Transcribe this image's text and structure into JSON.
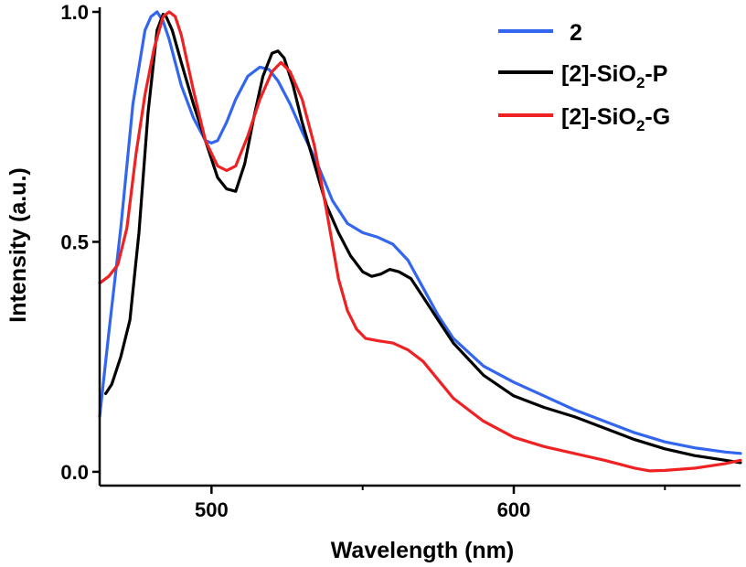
{
  "chart_data": {
    "type": "line",
    "title": "",
    "xlabel": "Wavelength (nm)",
    "ylabel": "Intensity (a.u.)",
    "xlim": [
      463,
      675
    ],
    "ylim": [
      -0.03,
      1.01
    ],
    "x_ticks_major": [
      500,
      600
    ],
    "x_ticks_minor": [
      550,
      650
    ],
    "y_ticks_major": [
      0.0,
      0.5,
      1.0
    ],
    "x_tick_labels": [
      "500",
      "600"
    ],
    "y_tick_labels": [
      "0.0",
      "0.5",
      "1.0"
    ],
    "legend_position": "top-right",
    "series": [
      {
        "name": "2",
        "legend_parts": [
          "2"
        ],
        "color": "#3366ee",
        "x": [
          463,
          466,
          470,
          474,
          478,
          480,
          482,
          484,
          486,
          488,
          490,
          494,
          498,
          500,
          502,
          505,
          508,
          512,
          516,
          519,
          522,
          526,
          530,
          535,
          540,
          545,
          550,
          555,
          560,
          565,
          570,
          575,
          580,
          590,
          600,
          610,
          620,
          630,
          640,
          650,
          660,
          670,
          675
        ],
        "y": [
          0.12,
          0.3,
          0.53,
          0.8,
          0.96,
          0.99,
          1.0,
          0.98,
          0.94,
          0.89,
          0.84,
          0.77,
          0.72,
          0.715,
          0.72,
          0.76,
          0.81,
          0.86,
          0.88,
          0.875,
          0.85,
          0.8,
          0.74,
          0.67,
          0.59,
          0.54,
          0.52,
          0.51,
          0.495,
          0.46,
          0.4,
          0.34,
          0.29,
          0.23,
          0.195,
          0.165,
          0.135,
          0.11,
          0.085,
          0.065,
          0.052,
          0.043,
          0.04
        ]
      },
      {
        "name": "[2]-SiO2-P",
        "legend_parts": [
          "[2]-SiO",
          "2",
          "-P"
        ],
        "color": "#000000",
        "x": [
          465,
          467,
          470,
          473,
          476,
          479,
          482,
          484,
          485,
          487,
          490,
          494,
          498,
          502,
          505,
          508,
          511,
          514,
          517,
          520,
          522,
          524,
          527,
          530,
          534,
          538,
          542,
          546,
          550,
          553,
          556,
          559,
          562,
          566,
          570,
          575,
          580,
          590,
          600,
          610,
          620,
          630,
          640,
          650,
          660,
          670,
          675
        ],
        "y": [
          0.17,
          0.19,
          0.25,
          0.33,
          0.52,
          0.78,
          0.96,
          0.995,
          0.99,
          0.96,
          0.89,
          0.8,
          0.72,
          0.64,
          0.615,
          0.61,
          0.67,
          0.77,
          0.86,
          0.91,
          0.915,
          0.9,
          0.84,
          0.76,
          0.67,
          0.58,
          0.52,
          0.47,
          0.435,
          0.425,
          0.43,
          0.44,
          0.435,
          0.42,
          0.38,
          0.33,
          0.28,
          0.21,
          0.165,
          0.14,
          0.12,
          0.095,
          0.07,
          0.05,
          0.035,
          0.025,
          0.02
        ]
      },
      {
        "name": "[2]-SiO2-G",
        "legend_parts": [
          "[2]-SiO",
          "2",
          "-G"
        ],
        "color": "#ee2222",
        "x": [
          463,
          466,
          469,
          472,
          475,
          478,
          481,
          484,
          486,
          488,
          490,
          494,
          498,
          502,
          505,
          508,
          512,
          516,
          520,
          523,
          526,
          530,
          534,
          538,
          542,
          545,
          548,
          551,
          555,
          560,
          565,
          570,
          575,
          580,
          590,
          600,
          610,
          620,
          630,
          640,
          645,
          650,
          660,
          670,
          675
        ],
        "y": [
          0.41,
          0.425,
          0.45,
          0.53,
          0.69,
          0.82,
          0.92,
          0.99,
          1.0,
          0.99,
          0.95,
          0.83,
          0.72,
          0.665,
          0.655,
          0.665,
          0.73,
          0.81,
          0.87,
          0.89,
          0.87,
          0.81,
          0.71,
          0.57,
          0.42,
          0.35,
          0.31,
          0.29,
          0.285,
          0.28,
          0.265,
          0.24,
          0.2,
          0.16,
          0.11,
          0.075,
          0.055,
          0.04,
          0.025,
          0.008,
          0.002,
          0.003,
          0.008,
          0.018,
          0.025
        ]
      }
    ]
  }
}
